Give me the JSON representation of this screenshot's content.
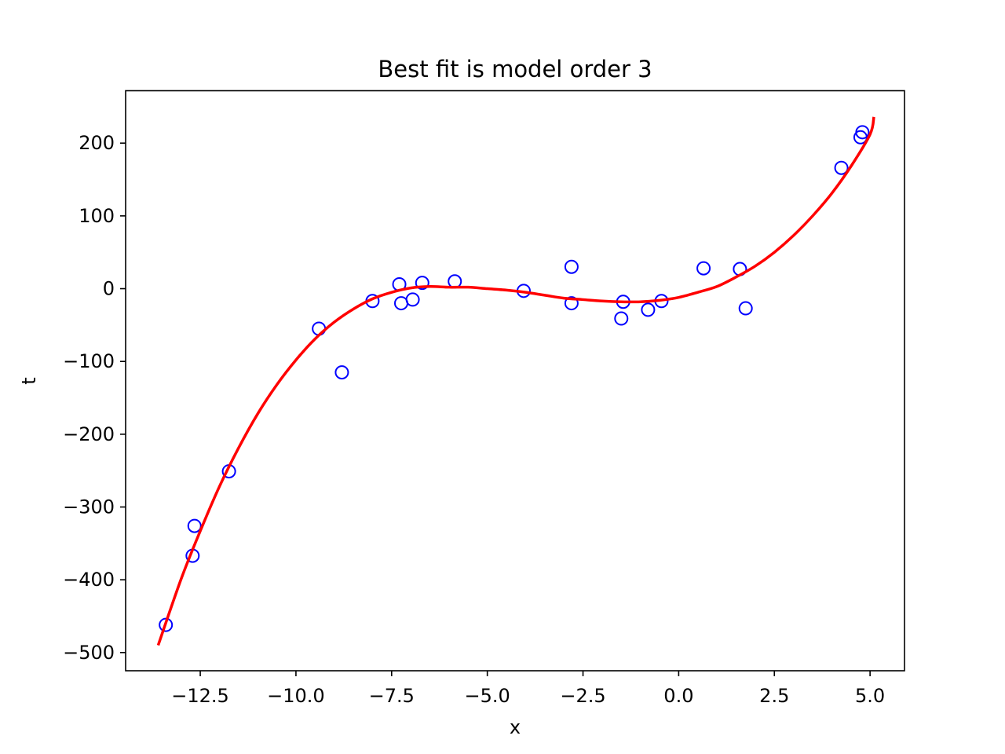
{
  "chart_data": {
    "type": "scatter",
    "title": "Best fit is model order 3",
    "xlabel": "x",
    "ylabel": "t",
    "xlim": [
      -14.45,
      5.9
    ],
    "ylim": [
      -525,
      272
    ],
    "grid": false,
    "legend": "none",
    "x_ticks": [
      -12.5,
      -10.0,
      -7.5,
      -5.0,
      -2.5,
      0.0,
      2.5,
      5.0
    ],
    "x_tick_labels": [
      "−12.5",
      "−10.0",
      "−7.5",
      "−5.0",
      "−2.5",
      "0.0",
      "2.5",
      "5.0"
    ],
    "y_ticks": [
      200,
      100,
      0,
      -100,
      -200,
      -300,
      -400,
      -500
    ],
    "y_tick_labels": [
      "200",
      "100",
      "0",
      "−100",
      "−200",
      "−300",
      "−400",
      "−500"
    ],
    "series": [
      {
        "kind": "scatter",
        "marker": "open-circle",
        "color": "#0000ff",
        "points": [
          {
            "x": -13.4,
            "y": -462
          },
          {
            "x": -12.7,
            "y": -367
          },
          {
            "x": -12.65,
            "y": -326
          },
          {
            "x": -11.75,
            "y": -251
          },
          {
            "x": -9.4,
            "y": -55
          },
          {
            "x": -8.8,
            "y": -115
          },
          {
            "x": -8.0,
            "y": -17
          },
          {
            "x": -7.3,
            "y": 6
          },
          {
            "x": -7.25,
            "y": -20
          },
          {
            "x": -6.95,
            "y": -15
          },
          {
            "x": -6.7,
            "y": 8
          },
          {
            "x": -5.85,
            "y": 10
          },
          {
            "x": -4.05,
            "y": -3
          },
          {
            "x": -2.8,
            "y": 30
          },
          {
            "x": -2.8,
            "y": -20
          },
          {
            "x": -1.5,
            "y": -41
          },
          {
            "x": -1.45,
            "y": -18
          },
          {
            "x": -0.8,
            "y": -29
          },
          {
            "x": -0.45,
            "y": -17
          },
          {
            "x": 0.65,
            "y": 28
          },
          {
            "x": 1.6,
            "y": 27
          },
          {
            "x": 1.75,
            "y": -27
          },
          {
            "x": 4.25,
            "y": 166
          },
          {
            "x": 4.75,
            "y": 208
          },
          {
            "x": 4.8,
            "y": 215
          }
        ]
      },
      {
        "kind": "line",
        "color": "#ff0000",
        "curve": [
          {
            "x": -13.6,
            "y": -490
          },
          {
            "x": -13.0,
            "y": -399
          },
          {
            "x": -12.5,
            "y": -333
          },
          {
            "x": -12.0,
            "y": -272
          },
          {
            "x": -11.5,
            "y": -219
          },
          {
            "x": -11.0,
            "y": -172
          },
          {
            "x": -10.5,
            "y": -132
          },
          {
            "x": -10.0,
            "y": -98
          },
          {
            "x": -9.5,
            "y": -69
          },
          {
            "x": -9.0,
            "y": -46
          },
          {
            "x": -8.5,
            "y": -28
          },
          {
            "x": -8.0,
            "y": -14
          },
          {
            "x": -7.5,
            "y": -5
          },
          {
            "x": -7.0,
            "y": 1
          },
          {
            "x": -6.5,
            "y": 3
          },
          {
            "x": -6.0,
            "y": 2
          },
          {
            "x": -5.5,
            "y": 2
          },
          {
            "x": -5.0,
            "y": 0
          },
          {
            "x": -4.5,
            "y": -2
          },
          {
            "x": -4.0,
            "y": -5
          },
          {
            "x": -3.5,
            "y": -9
          },
          {
            "x": -3.0,
            "y": -13
          },
          {
            "x": -2.5,
            "y": -15
          },
          {
            "x": -2.0,
            "y": -17
          },
          {
            "x": -1.5,
            "y": -18
          },
          {
            "x": -1.0,
            "y": -18
          },
          {
            "x": -0.5,
            "y": -16
          },
          {
            "x": 0.0,
            "y": -12
          },
          {
            "x": 0.5,
            "y": -5
          },
          {
            "x": 1.0,
            "y": 3
          },
          {
            "x": 1.5,
            "y": 16
          },
          {
            "x": 2.0,
            "y": 31
          },
          {
            "x": 2.5,
            "y": 50
          },
          {
            "x": 3.0,
            "y": 73
          },
          {
            "x": 3.5,
            "y": 100
          },
          {
            "x": 4.0,
            "y": 131
          },
          {
            "x": 4.5,
            "y": 168
          },
          {
            "x": 5.0,
            "y": 212
          },
          {
            "x": 5.1,
            "y": 236
          }
        ]
      }
    ]
  }
}
